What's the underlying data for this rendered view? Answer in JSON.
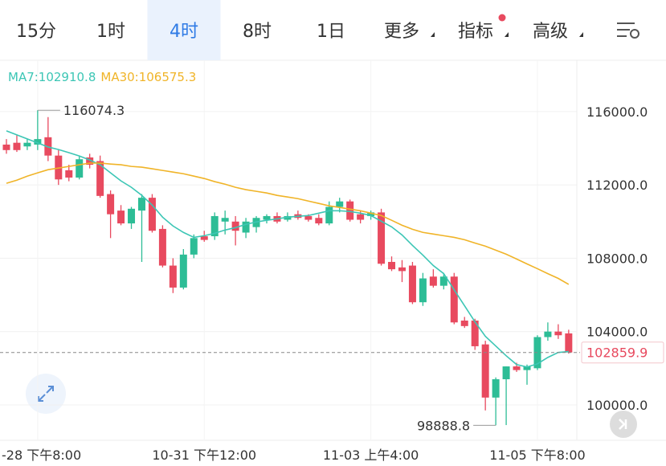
{
  "tabs": [
    "15分",
    "1时",
    "4时",
    "8时",
    "1日",
    "更多",
    "指标",
    "高级"
  ],
  "active_tab": 2,
  "chart_data": {
    "type": "candlestick",
    "categories": [
      null,
      null,
      null,
      "-28 下午8:00",
      null,
      null,
      null,
      null,
      null,
      null,
      null,
      null,
      null,
      null,
      null,
      null,
      null,
      null,
      null,
      "10-31 下午12:00",
      null,
      null,
      null,
      null,
      null,
      null,
      null,
      null,
      null,
      null,
      null,
      null,
      null,
      null,
      null,
      "11-03 上午4:00",
      null,
      null,
      null,
      null,
      null,
      null,
      null,
      null,
      null,
      null,
      null,
      null,
      null,
      null,
      null,
      "11-05 下午8:00",
      null,
      null,
      null
    ],
    "open": [
      114200,
      114300,
      114100,
      114200,
      114600,
      113600,
      112800,
      112400,
      113500,
      113300,
      111500,
      110600,
      109900,
      110600,
      111300,
      109600,
      107600,
      106400,
      108200,
      109200,
      109200,
      110000,
      110000,
      109400,
      109700,
      110100,
      110300,
      110100,
      110400,
      110300,
      110200,
      109900,
      110800,
      111100,
      110400,
      110300,
      110500,
      107800,
      107500,
      107600,
      105600,
      107000,
      106500,
      107000,
      104600,
      104600,
      103300,
      100400,
      101400,
      102100,
      101900,
      102000,
      103700,
      104000,
      103900
    ],
    "high": [
      114500,
      114700,
      114500,
      116074.3,
      115700,
      113900,
      113100,
      113600,
      113700,
      113600,
      111700,
      110900,
      110800,
      111500,
      111500,
      109800,
      108000,
      108500,
      109300,
      109500,
      110500,
      110600,
      110300,
      110200,
      110300,
      110400,
      110500,
      110500,
      110600,
      110400,
      110400,
      111100,
      111300,
      111200,
      110600,
      110600,
      110700,
      108100,
      107900,
      107800,
      107200,
      107400,
      107200,
      107200,
      104800,
      104700,
      103500,
      101500,
      102100,
      102300,
      102200,
      103800,
      104500,
      104400,
      104100
    ],
    "low": [
      113700,
      113800,
      113900,
      113900,
      113300,
      112000,
      112200,
      112300,
      112900,
      111300,
      109100,
      109800,
      109600,
      107800,
      109400,
      107500,
      106100,
      106300,
      108000,
      108900,
      109000,
      109300,
      108700,
      109100,
      109400,
      109900,
      109900,
      110000,
      110100,
      110000,
      109800,
      109800,
      110500,
      110000,
      109900,
      110100,
      107600,
      107300,
      106700,
      105500,
      105400,
      106400,
      106300,
      104400,
      104200,
      103000,
      99700,
      98888.8,
      98900,
      101800,
      101100,
      101900,
      103500,
      103600,
      102800
    ],
    "close": [
      113900,
      113900,
      114300,
      114500,
      113600,
      112300,
      112400,
      113400,
      113100,
      111400,
      110400,
      109900,
      110700,
      111300,
      109500,
      107600,
      106400,
      108200,
      109100,
      109000,
      110300,
      110200,
      109500,
      110000,
      110200,
      110300,
      110000,
      110300,
      110200,
      110100,
      109900,
      110800,
      111100,
      110100,
      110100,
      110500,
      107700,
      107400,
      107300,
      105600,
      106900,
      106500,
      107000,
      104500,
      104300,
      103200,
      100400,
      101400,
      102100,
      101900,
      102100,
      103700,
      104000,
      103800,
      102859.9
    ],
    "up_color": "#2dbd96",
    "down_color": "#e84a5f",
    "series": [
      {
        "name": "MA7",
        "legend_label": "MA7:102910.8",
        "color": "#3cc6b5",
        "values": [
          114950,
          114730,
          114510,
          114290,
          114070,
          113930,
          113760,
          113580,
          113360,
          113100,
          112660,
          112220,
          111870,
          111430,
          110900,
          110240,
          109760,
          109410,
          109140,
          109230,
          109360,
          109540,
          109670,
          109850,
          109980,
          110070,
          110150,
          110240,
          110290,
          110330,
          110460,
          110590,
          110590,
          110550,
          110460,
          110330,
          110020,
          109710,
          109270,
          108700,
          108170,
          107600,
          107160,
          106280,
          105410,
          104530,
          103740,
          103210,
          102680,
          102200,
          102070,
          102240,
          102590,
          102860,
          102910.8
        ]
      },
      {
        "name": "MA30",
        "legend_label": "MA30:106575.3",
        "color": "#f0b428",
        "values": [
          112090,
          112260,
          112480,
          112660,
          112830,
          112920,
          113010,
          113100,
          113190,
          113190,
          113140,
          113100,
          113010,
          112970,
          112880,
          112790,
          112700,
          112610,
          112480,
          112350,
          112180,
          112040,
          111870,
          111740,
          111650,
          111560,
          111430,
          111340,
          111250,
          111120,
          110990,
          110860,
          110770,
          110680,
          110590,
          110460,
          110330,
          110070,
          109800,
          109580,
          109410,
          109320,
          109230,
          109140,
          109010,
          108830,
          108660,
          108440,
          108220,
          107960,
          107690,
          107430,
          107160,
          106900,
          106575.3
        ]
      }
    ],
    "last_price": 102859.9,
    "ylim": [
      98070,
      118800
    ],
    "yticks": [
      {
        "value": 100000,
        "label": "100000.0"
      },
      {
        "value": 104000,
        "label": "104000.0"
      },
      {
        "value": 108000,
        "label": "108000.0"
      },
      {
        "value": 112000,
        "label": "112000.0"
      },
      {
        "value": 116000,
        "label": "116000.0"
      }
    ],
    "grid": true
  }
}
